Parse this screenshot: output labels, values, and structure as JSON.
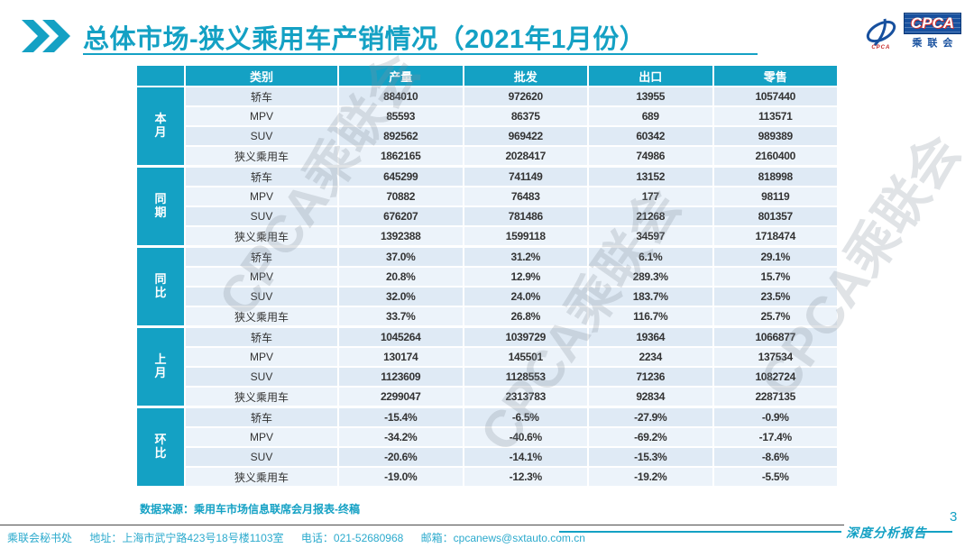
{
  "slide": {
    "title": "总体市场-狭义乘用车产销情况（2021年1月份）",
    "source_note": "数据来源：乘用车市场信息联席会月报表-终稿",
    "watermark_text": "CPCA乘联会",
    "report_label": "深度分析报告",
    "page_number": "3"
  },
  "logo": {
    "acronym": "CPCA",
    "org_name": "乘联会",
    "emblem_caption": "CPCA"
  },
  "table": {
    "headers": [
      "类别",
      "产量",
      "批发",
      "出口",
      "零售"
    ],
    "groups": [
      {
        "label": "本月",
        "rows": [
          {
            "category": "轿车",
            "values": [
              "884010",
              "972620",
              "13955",
              "1057440"
            ]
          },
          {
            "category": "MPV",
            "values": [
              "85593",
              "86375",
              "689",
              "113571"
            ]
          },
          {
            "category": "SUV",
            "values": [
              "892562",
              "969422",
              "60342",
              "989389"
            ]
          },
          {
            "category": "狭义乘用车",
            "values": [
              "1862165",
              "2028417",
              "74986",
              "2160400"
            ]
          }
        ]
      },
      {
        "label": "同期",
        "rows": [
          {
            "category": "轿车",
            "values": [
              "645299",
              "741149",
              "13152",
              "818998"
            ]
          },
          {
            "category": "MPV",
            "values": [
              "70882",
              "76483",
              "177",
              "98119"
            ]
          },
          {
            "category": "SUV",
            "values": [
              "676207",
              "781486",
              "21268",
              "801357"
            ]
          },
          {
            "category": "狭义乘用车",
            "values": [
              "1392388",
              "1599118",
              "34597",
              "1718474"
            ]
          }
        ]
      },
      {
        "label": "同比",
        "rows": [
          {
            "category": "轿车",
            "values": [
              "37.0%",
              "31.2%",
              "6.1%",
              "29.1%"
            ]
          },
          {
            "category": "MPV",
            "values": [
              "20.8%",
              "12.9%",
              "289.3%",
              "15.7%"
            ]
          },
          {
            "category": "SUV",
            "values": [
              "32.0%",
              "24.0%",
              "183.7%",
              "23.5%"
            ]
          },
          {
            "category": "狭义乘用车",
            "values": [
              "33.7%",
              "26.8%",
              "116.7%",
              "25.7%"
            ]
          }
        ]
      },
      {
        "label": "上月",
        "rows": [
          {
            "category": "轿车",
            "values": [
              "1045264",
              "1039729",
              "19364",
              "1066877"
            ]
          },
          {
            "category": "MPV",
            "values": [
              "130174",
              "145501",
              "2234",
              "137534"
            ]
          },
          {
            "category": "SUV",
            "values": [
              "1123609",
              "1128553",
              "71236",
              "1082724"
            ]
          },
          {
            "category": "狭义乘用车",
            "values": [
              "2299047",
              "2313783",
              "92834",
              "2287135"
            ]
          }
        ]
      },
      {
        "label": "环比",
        "rows": [
          {
            "category": "轿车",
            "values": [
              "-15.4%",
              "-6.5%",
              "-27.9%",
              "-0.9%"
            ]
          },
          {
            "category": "MPV",
            "values": [
              "-34.2%",
              "-40.6%",
              "-69.2%",
              "-17.4%"
            ]
          },
          {
            "category": "SUV",
            "values": [
              "-20.6%",
              "-14.1%",
              "-15.3%",
              "-8.6%"
            ]
          },
          {
            "category": "狭义乘用车",
            "values": [
              "-19.0%",
              "-12.3%",
              "-19.2%",
              "-5.5%"
            ]
          }
        ]
      }
    ]
  },
  "footer": {
    "org": "乘联会秘书处",
    "address": "地址：上海市武宁路423号18号楼1103室",
    "phone": "电话：021-52680968",
    "email": "邮箱：cpcanews@sxtauto.com.cn"
  },
  "colors": {
    "accent": "#14a1c4",
    "logo_blue": "#17509e",
    "row_alt_a": "#dfeaf5",
    "row_alt_b": "#ecf3fa"
  }
}
